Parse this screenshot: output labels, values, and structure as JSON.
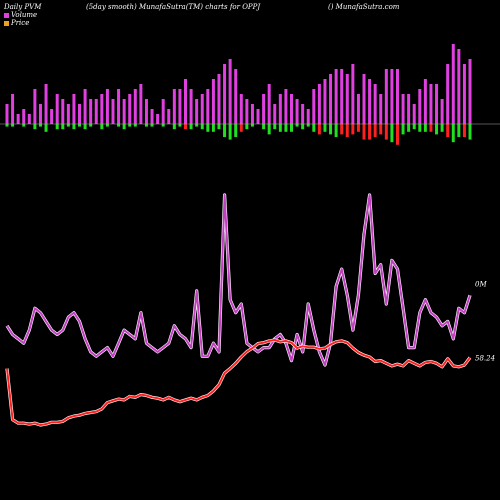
{
  "header": {
    "left": "Daily PVM",
    "center": "(5day smooth) MunafaSutra(TM) charts for OPPJ",
    "right": "() MunafaSutra.com"
  },
  "legend": {
    "volume_label": "Volume",
    "price_label": "Price",
    "volume_color": "#e040e0",
    "price_color": "#f0a020"
  },
  "colors": {
    "volume_line": "#c040c0",
    "price_line": "#ff2020",
    "up_bar": "#e040e0",
    "down_bar_green": "#20e020",
    "down_bar_red": "#ff2020",
    "baseline": "#aaaaaa"
  },
  "chart_data": {
    "type": "line",
    "series": [
      {
        "name": "Volume",
        "end_label": "0M",
        "values": [
          57,
          55,
          54,
          53,
          56,
          61,
          60,
          58,
          56,
          55,
          56,
          59,
          60,
          58,
          54,
          51,
          50,
          51,
          52,
          50,
          53,
          56,
          55,
          54,
          60,
          53,
          52,
          51,
          52,
          53,
          57,
          55,
          54,
          52,
          65,
          50,
          50,
          53,
          51,
          87,
          63,
          60,
          62,
          53,
          52,
          51,
          52,
          52,
          54,
          55,
          53,
          49,
          55,
          51,
          62,
          56,
          51,
          48,
          53,
          66,
          70,
          64,
          56,
          64,
          78,
          87,
          69,
          71,
          62,
          72,
          70,
          61,
          52,
          52,
          60,
          63,
          60,
          59,
          57,
          58,
          54,
          61,
          60,
          64
        ]
      },
      {
        "name": "Price",
        "end_label": "58.24",
        "values": [
          57.0,
          51.3,
          50.9,
          50.9,
          50.8,
          50.9,
          50.7,
          50.8,
          51.0,
          51.0,
          51.1,
          51.5,
          51.7,
          51.8,
          52.0,
          52.1,
          52.2,
          52.5,
          53.2,
          53.4,
          53.6,
          53.5,
          53.9,
          53.8,
          54.1,
          54.0,
          53.8,
          53.7,
          53.5,
          53.8,
          53.5,
          53.3,
          53.5,
          53.7,
          53.5,
          53.8,
          54.0,
          54.5,
          55.2,
          56.5,
          57.0,
          57.6,
          58.3,
          58.9,
          59.3,
          59.8,
          59.9,
          60.1,
          60.2,
          60.0,
          60.1,
          59.9,
          59.3,
          59.5,
          59.4,
          59.4,
          59.2,
          59.3,
          59.7,
          60.0,
          60.1,
          59.9,
          59.3,
          58.8,
          58.5,
          58.3,
          57.8,
          57.9,
          57.6,
          57.3,
          57.5,
          57.3,
          57.9,
          57.6,
          57.3,
          57.7,
          57.8,
          57.6,
          57.2,
          58.1,
          57.3,
          57.2,
          57.4,
          58.24
        ]
      }
    ],
    "volume_bars": {
      "above": [
        4,
        6,
        2,
        3,
        2,
        7,
        4,
        8,
        3,
        6,
        5,
        4,
        6,
        4,
        7,
        5,
        5,
        6,
        7,
        5,
        7,
        5,
        6,
        7,
        8,
        5,
        3,
        2,
        5,
        3,
        7,
        7,
        9,
        7,
        5,
        6,
        7,
        9,
        10,
        12,
        13,
        11,
        6,
        5,
        4,
        3,
        6,
        8,
        4,
        6,
        7,
        6,
        5,
        4,
        3,
        7,
        8,
        9,
        10,
        11,
        11,
        10,
        12,
        6,
        10,
        9,
        8,
        6,
        11,
        11,
        11,
        6,
        6,
        4,
        7,
        9,
        8,
        8,
        5,
        12,
        16,
        15,
        12,
        13
      ],
      "below": [
        1,
        1,
        0,
        1,
        0,
        2,
        1,
        3,
        0,
        2,
        2,
        1,
        2,
        1,
        2,
        1,
        0,
        2,
        1,
        0,
        1,
        2,
        1,
        1,
        0,
        1,
        1,
        0,
        1,
        0,
        2,
        1,
        2,
        2,
        1,
        2,
        3,
        3,
        2,
        5,
        6,
        5,
        3,
        2,
        1,
        0,
        2,
        4,
        2,
        3,
        3,
        3,
        1,
        2,
        1,
        3,
        4,
        3,
        4,
        5,
        4,
        5,
        4,
        3,
        6,
        6,
        5,
        4,
        6,
        7,
        8,
        4,
        3,
        2,
        3,
        3,
        3,
        4,
        3,
        5,
        7,
        5,
        5,
        6
      ],
      "down_color": [
        "green",
        "green",
        "green",
        "green",
        "green",
        "green",
        "green",
        "green",
        "green",
        "green",
        "green",
        "green",
        "green",
        "green",
        "green",
        "green",
        "red",
        "green",
        "green",
        "green",
        "green",
        "green",
        "green",
        "green",
        "red",
        "green",
        "green",
        "green",
        "green",
        "red",
        "green",
        "green",
        "red",
        "green",
        "green",
        "green",
        "green",
        "green",
        "green",
        "green",
        "green",
        "green",
        "red",
        "green",
        "green",
        "red",
        "green",
        "green",
        "green",
        "green",
        "green",
        "green",
        "green",
        "green",
        "green",
        "green",
        "red",
        "green",
        "green",
        "green",
        "red",
        "red",
        "red",
        "red",
        "red",
        "red",
        "red",
        "red",
        "red",
        "green",
        "red",
        "green",
        "green",
        "green",
        "green",
        "green",
        "red",
        "green",
        "green",
        "red",
        "green",
        "green",
        "red",
        "green"
      ]
    }
  }
}
